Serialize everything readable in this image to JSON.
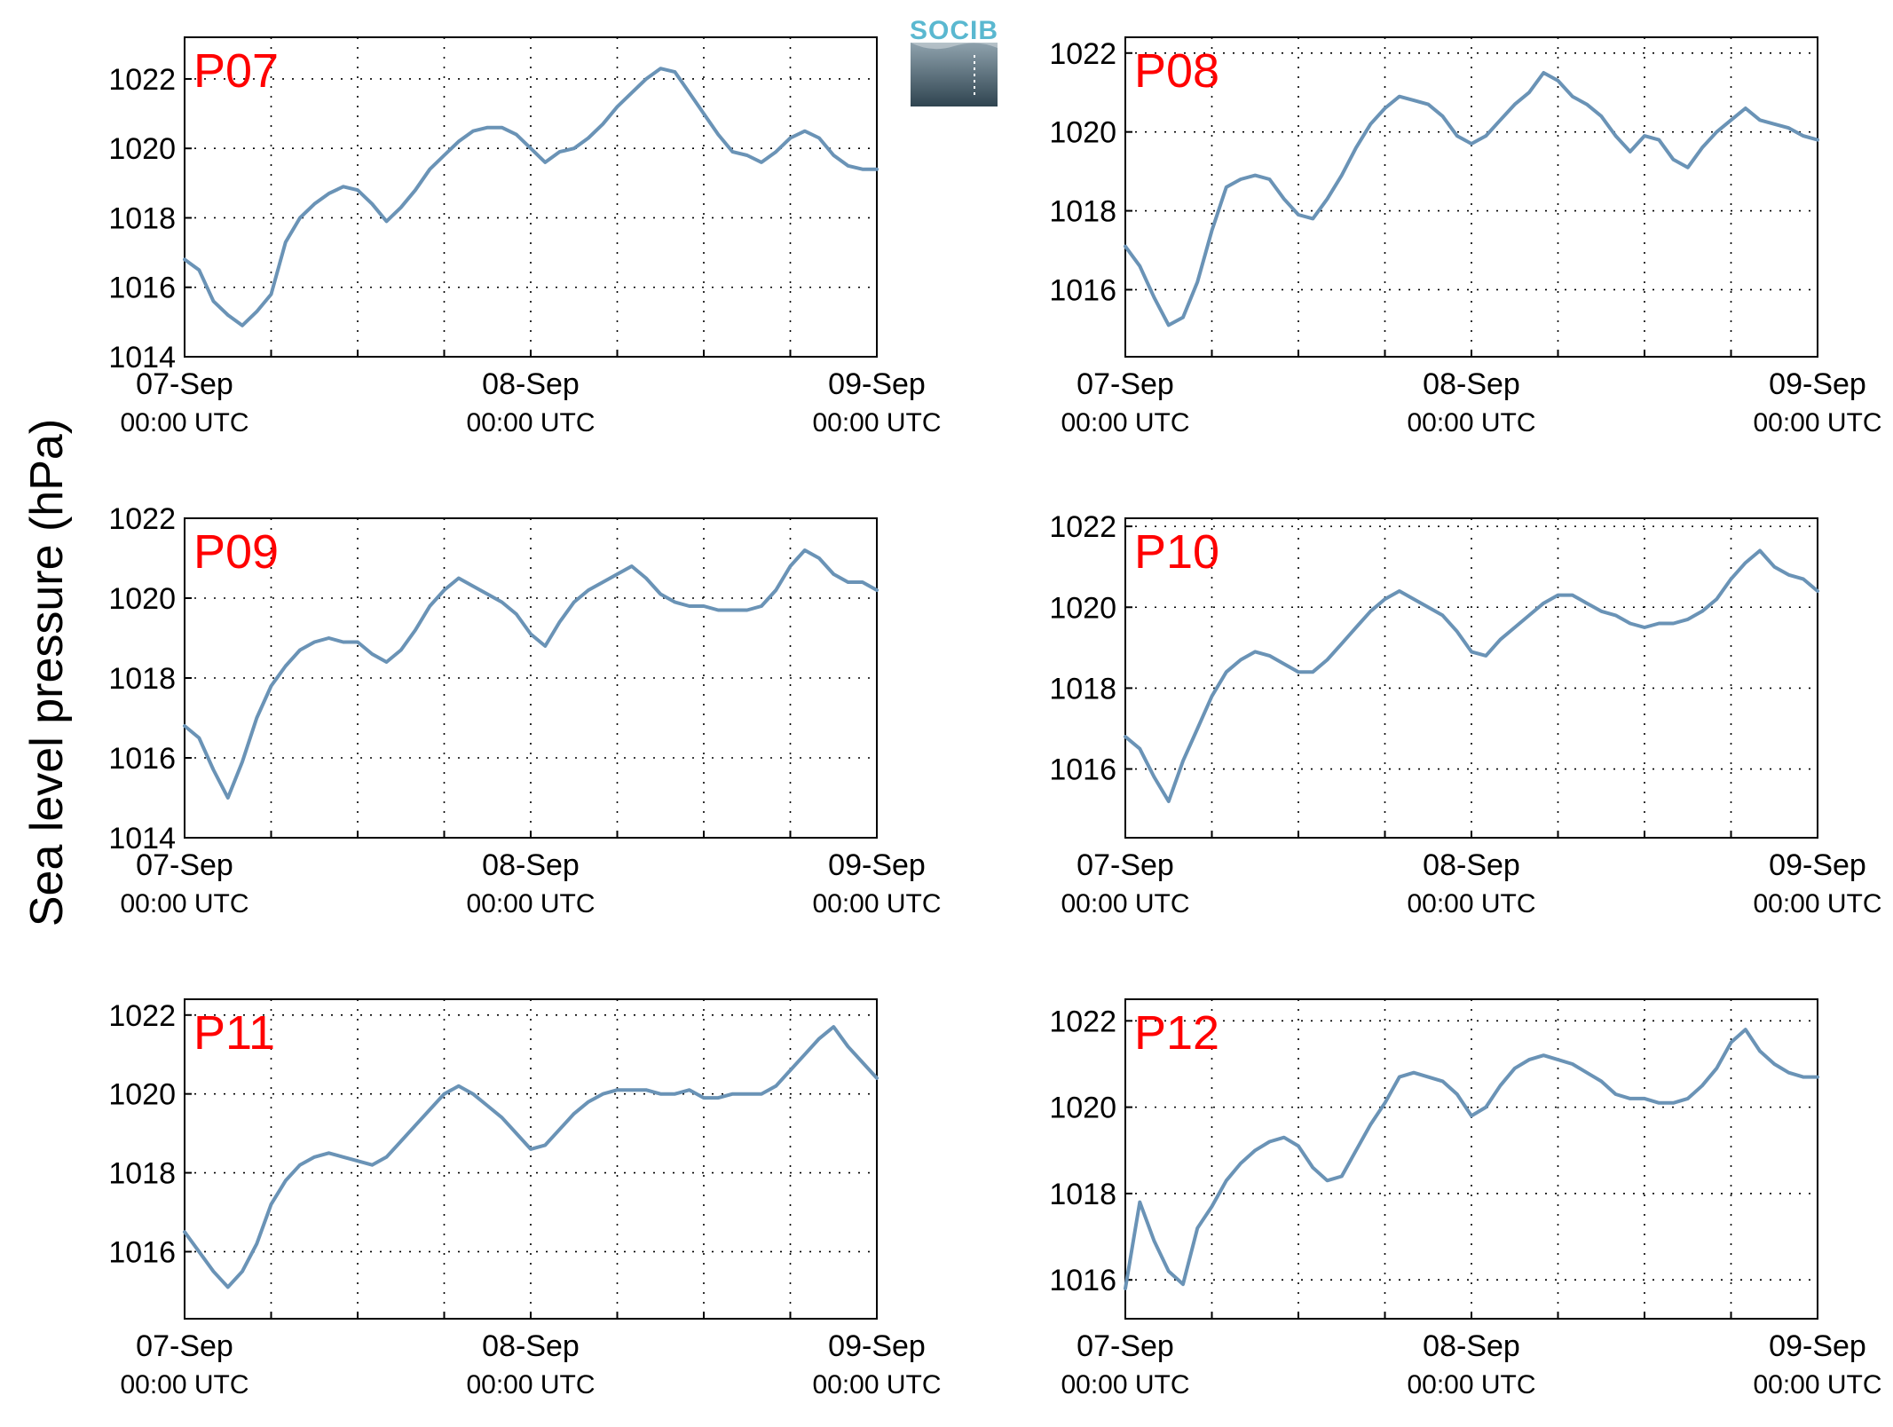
{
  "figure": {
    "ylabel": "Sea level pressure (hPa)",
    "logo_text": "SOCIB",
    "line_color": "#6a93b6",
    "label_color": "#ff0000"
  },
  "chart_data": [
    {
      "type": "line",
      "name": "P07",
      "label": "P07",
      "xlim": [
        0,
        48
      ],
      "ylim": [
        1014,
        1023.2
      ],
      "yticks": [
        "1014",
        "1016",
        "1018",
        "1020",
        "1022"
      ],
      "xtick_dates": [
        "07-Sep",
        "08-Sep",
        "09-Sep"
      ],
      "xtick_times": [
        "00:00 UTC",
        "00:00 UTC",
        "00:00 UTC"
      ],
      "grid": true,
      "x": [
        0,
        1,
        2,
        3,
        4,
        5,
        6,
        7,
        8,
        9,
        10,
        11,
        12,
        13,
        14,
        15,
        16,
        17,
        18,
        19,
        20,
        21,
        22,
        23,
        24,
        25,
        26,
        27,
        28,
        29,
        30,
        31,
        32,
        33,
        34,
        35,
        36,
        37,
        38,
        39,
        40,
        41,
        42,
        43,
        44,
        45,
        46,
        47,
        48
      ],
      "y": [
        1016.8,
        1016.5,
        1015.6,
        1015.2,
        1014.9,
        1015.3,
        1015.8,
        1017.3,
        1018.0,
        1018.4,
        1018.7,
        1018.9,
        1018.8,
        1018.4,
        1017.9,
        1018.3,
        1018.8,
        1019.4,
        1019.8,
        1020.2,
        1020.5,
        1020.6,
        1020.6,
        1020.4,
        1020.0,
        1019.6,
        1019.9,
        1020.0,
        1020.3,
        1020.7,
        1021.2,
        1021.6,
        1022.0,
        1022.3,
        1022.2,
        1021.6,
        1021.0,
        1020.4,
        1019.9,
        1019.8,
        1019.6,
        1019.9,
        1020.3,
        1020.5,
        1020.3,
        1019.8,
        1019.5,
        1019.4,
        1019.4
      ]
    },
    {
      "type": "line",
      "name": "P08",
      "label": "P08",
      "xlim": [
        0,
        48
      ],
      "ylim": [
        1014.3,
        1022.4
      ],
      "yticks": [
        "1016",
        "1018",
        "1020",
        "1022"
      ],
      "xtick_dates": [
        "07-Sep",
        "08-Sep",
        "09-Sep"
      ],
      "xtick_times": [
        "00:00 UTC",
        "00:00 UTC",
        "00:00 UTC"
      ],
      "grid": true,
      "x": [
        0,
        1,
        2,
        3,
        4,
        5,
        6,
        7,
        8,
        9,
        10,
        11,
        12,
        13,
        14,
        15,
        16,
        17,
        18,
        19,
        20,
        21,
        22,
        23,
        24,
        25,
        26,
        27,
        28,
        29,
        30,
        31,
        32,
        33,
        34,
        35,
        36,
        37,
        38,
        39,
        40,
        41,
        42,
        43,
        44,
        45,
        46,
        47,
        48
      ],
      "y": [
        1017.1,
        1016.6,
        1015.8,
        1015.1,
        1015.3,
        1016.2,
        1017.5,
        1018.6,
        1018.8,
        1018.9,
        1018.8,
        1018.3,
        1017.9,
        1017.8,
        1018.3,
        1018.9,
        1019.6,
        1020.2,
        1020.6,
        1020.9,
        1020.8,
        1020.7,
        1020.4,
        1019.9,
        1019.7,
        1019.9,
        1020.3,
        1020.7,
        1021.0,
        1021.5,
        1021.3,
        1020.9,
        1020.7,
        1020.4,
        1019.9,
        1019.5,
        1019.9,
        1019.8,
        1019.3,
        1019.1,
        1019.6,
        1020.0,
        1020.3,
        1020.6,
        1020.3,
        1020.2,
        1020.1,
        1019.9,
        1019.8
      ]
    },
    {
      "type": "line",
      "name": "P09",
      "label": "P09",
      "xlim": [
        0,
        48
      ],
      "ylim": [
        1014,
        1022
      ],
      "yticks": [
        "1014",
        "1016",
        "1018",
        "1020",
        "1022"
      ],
      "xtick_dates": [
        "07-Sep",
        "08-Sep",
        "09-Sep"
      ],
      "xtick_times": [
        "00:00 UTC",
        "00:00 UTC",
        "00:00 UTC"
      ],
      "grid": true,
      "x": [
        0,
        1,
        2,
        3,
        4,
        5,
        6,
        7,
        8,
        9,
        10,
        11,
        12,
        13,
        14,
        15,
        16,
        17,
        18,
        19,
        20,
        21,
        22,
        23,
        24,
        25,
        26,
        27,
        28,
        29,
        30,
        31,
        32,
        33,
        34,
        35,
        36,
        37,
        38,
        39,
        40,
        41,
        42,
        43,
        44,
        45,
        46,
        47,
        48
      ],
      "y": [
        1016.8,
        1016.5,
        1015.7,
        1015.0,
        1015.9,
        1017.0,
        1017.8,
        1018.3,
        1018.7,
        1018.9,
        1019.0,
        1018.9,
        1018.9,
        1018.6,
        1018.4,
        1018.7,
        1019.2,
        1019.8,
        1020.2,
        1020.5,
        1020.3,
        1020.1,
        1019.9,
        1019.6,
        1019.1,
        1018.8,
        1019.4,
        1019.9,
        1020.2,
        1020.4,
        1020.6,
        1020.8,
        1020.5,
        1020.1,
        1019.9,
        1019.8,
        1019.8,
        1019.7,
        1019.7,
        1019.7,
        1019.8,
        1020.2,
        1020.8,
        1021.2,
        1021.0,
        1020.6,
        1020.4,
        1020.4,
        1020.2
      ]
    },
    {
      "type": "line",
      "name": "P10",
      "label": "P10",
      "xlim": [
        0,
        48
      ],
      "ylim": [
        1014.3,
        1022.2
      ],
      "yticks": [
        "1016",
        "1018",
        "1020",
        "1022"
      ],
      "xtick_dates": [
        "07-Sep",
        "08-Sep",
        "09-Sep"
      ],
      "xtick_times": [
        "00:00 UTC",
        "00:00 UTC",
        "00:00 UTC"
      ],
      "grid": true,
      "x": [
        0,
        1,
        2,
        3,
        4,
        5,
        6,
        7,
        8,
        9,
        10,
        11,
        12,
        13,
        14,
        15,
        16,
        17,
        18,
        19,
        20,
        21,
        22,
        23,
        24,
        25,
        26,
        27,
        28,
        29,
        30,
        31,
        32,
        33,
        34,
        35,
        36,
        37,
        38,
        39,
        40,
        41,
        42,
        43,
        44,
        45,
        46,
        47,
        48
      ],
      "y": [
        1016.8,
        1016.5,
        1015.8,
        1015.2,
        1016.2,
        1017.0,
        1017.8,
        1018.4,
        1018.7,
        1018.9,
        1018.8,
        1018.6,
        1018.4,
        1018.4,
        1018.7,
        1019.1,
        1019.5,
        1019.9,
        1020.2,
        1020.4,
        1020.2,
        1020.0,
        1019.8,
        1019.4,
        1018.9,
        1018.8,
        1019.2,
        1019.5,
        1019.8,
        1020.1,
        1020.3,
        1020.3,
        1020.1,
        1019.9,
        1019.8,
        1019.6,
        1019.5,
        1019.6,
        1019.6,
        1019.7,
        1019.9,
        1020.2,
        1020.7,
        1021.1,
        1021.4,
        1021.0,
        1020.8,
        1020.7,
        1020.4
      ]
    },
    {
      "type": "line",
      "name": "P11",
      "label": "P11",
      "xlim": [
        0,
        48
      ],
      "ylim": [
        1014.3,
        1022.4
      ],
      "yticks": [
        "1016",
        "1018",
        "1020",
        "1022"
      ],
      "xtick_dates": [
        "07-Sep",
        "08-Sep",
        "09-Sep"
      ],
      "xtick_times": [
        "00:00 UTC",
        "00:00 UTC",
        "00:00 UTC"
      ],
      "grid": true,
      "x": [
        0,
        1,
        2,
        3,
        4,
        5,
        6,
        7,
        8,
        9,
        10,
        11,
        12,
        13,
        14,
        15,
        16,
        17,
        18,
        19,
        20,
        21,
        22,
        23,
        24,
        25,
        26,
        27,
        28,
        29,
        30,
        31,
        32,
        33,
        34,
        35,
        36,
        37,
        38,
        39,
        40,
        41,
        42,
        43,
        44,
        45,
        46,
        47,
        48
      ],
      "y": [
        1016.5,
        1016.0,
        1015.5,
        1015.1,
        1015.5,
        1016.2,
        1017.2,
        1017.8,
        1018.2,
        1018.4,
        1018.5,
        1018.4,
        1018.3,
        1018.2,
        1018.4,
        1018.8,
        1019.2,
        1019.6,
        1020.0,
        1020.2,
        1020.0,
        1019.7,
        1019.4,
        1019.0,
        1018.6,
        1018.7,
        1019.1,
        1019.5,
        1019.8,
        1020.0,
        1020.1,
        1020.1,
        1020.1,
        1020.0,
        1020.0,
        1020.1,
        1019.9,
        1019.9,
        1020.0,
        1020.0,
        1020.0,
        1020.2,
        1020.6,
        1021.0,
        1021.4,
        1021.7,
        1021.2,
        1020.8,
        1020.4
      ]
    },
    {
      "type": "line",
      "name": "P12",
      "label": "P12",
      "xlim": [
        0,
        48
      ],
      "ylim": [
        1015.1,
        1022.5
      ],
      "yticks": [
        "1016",
        "1018",
        "1020",
        "1022"
      ],
      "xtick_dates": [
        "07-Sep",
        "08-Sep",
        "09-Sep"
      ],
      "xtick_times": [
        "00:00 UTC",
        "00:00 UTC",
        "00:00 UTC"
      ],
      "grid": true,
      "x": [
        0,
        1,
        2,
        3,
        4,
        5,
        6,
        7,
        8,
        9,
        10,
        11,
        12,
        13,
        14,
        15,
        16,
        17,
        18,
        19,
        20,
        21,
        22,
        23,
        24,
        25,
        26,
        27,
        28,
        29,
        30,
        31,
        32,
        33,
        34,
        35,
        36,
        37,
        38,
        39,
        40,
        41,
        42,
        43,
        44,
        45,
        46,
        47,
        48
      ],
      "y": [
        1015.8,
        1017.8,
        1016.9,
        1016.2,
        1015.9,
        1017.2,
        1017.7,
        1018.3,
        1018.7,
        1019.0,
        1019.2,
        1019.3,
        1019.1,
        1018.6,
        1018.3,
        1018.4,
        1019.0,
        1019.6,
        1020.1,
        1020.7,
        1020.8,
        1020.7,
        1020.6,
        1020.3,
        1019.8,
        1020.0,
        1020.5,
        1020.9,
        1021.1,
        1021.2,
        1021.1,
        1021.0,
        1020.8,
        1020.6,
        1020.3,
        1020.2,
        1020.2,
        1020.1,
        1020.1,
        1020.2,
        1020.5,
        1020.9,
        1021.5,
        1021.8,
        1021.3,
        1021.0,
        1020.8,
        1020.7,
        1020.7
      ]
    }
  ]
}
